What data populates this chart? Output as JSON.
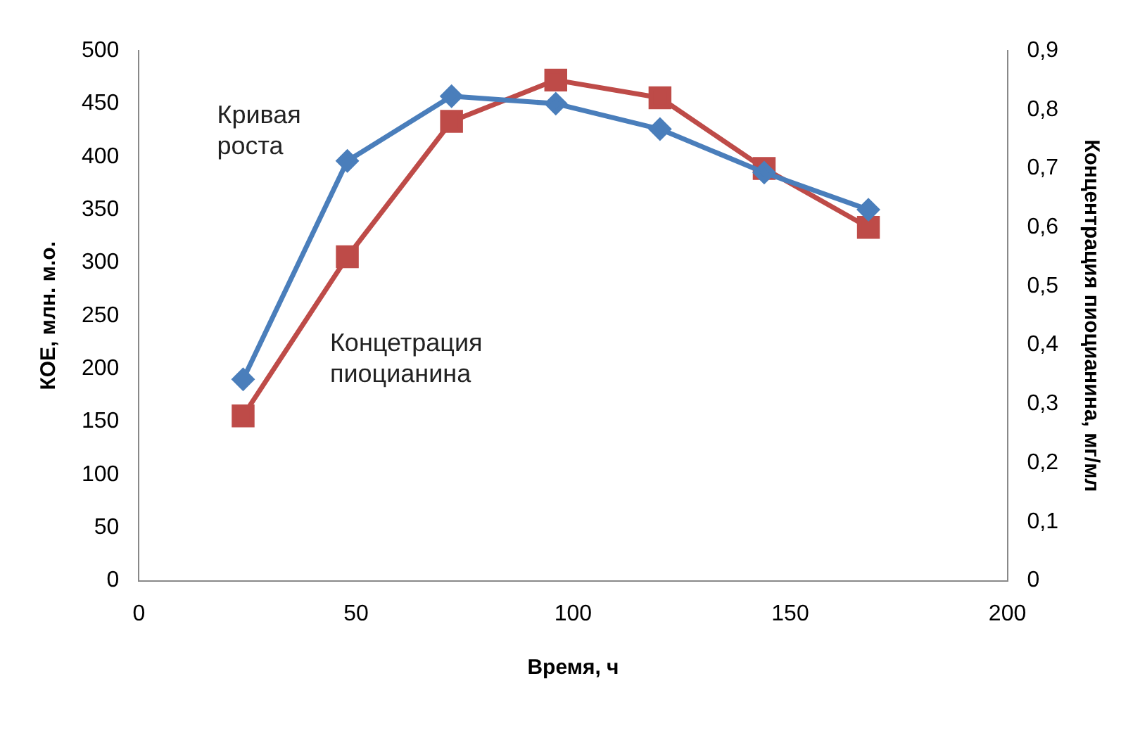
{
  "chart_data": {
    "type": "line",
    "xlabel": "Время, ч",
    "ylabel": "КОЕ, млн. м.о.",
    "y2label": "Концентрация пиоцианина, мг/мл",
    "x": [
      24,
      48,
      72,
      96,
      120,
      144,
      168
    ],
    "series": [
      {
        "name": "Кривая роста",
        "color": "#4a7ebb",
        "marker": "diamond",
        "values": [
          190,
          396,
          457,
          450,
          426,
          385,
          350
        ]
      },
      {
        "name": "Концетрация пиоцианина",
        "color": "#be4b48",
        "marker": "square",
        "axis": "y2",
        "values": [
          0.28,
          0.55,
          0.78,
          0.85,
          0.82,
          0.7,
          0.6
        ]
      }
    ],
    "xlim": [
      0,
      200
    ],
    "xticks": [
      0,
      50,
      100,
      150,
      200
    ],
    "ylim": [
      0,
      500
    ],
    "yticks": [
      0,
      50,
      100,
      150,
      200,
      250,
      300,
      350,
      400,
      450,
      500
    ],
    "y2lim": [
      0,
      0.9
    ],
    "y2ticks": [
      {
        "value": 0,
        "label": "0"
      },
      {
        "value": 0.1,
        "label": "0,1"
      },
      {
        "value": 0.2,
        "label": "0,2"
      },
      {
        "value": 0.3,
        "label": "0,3"
      },
      {
        "value": 0.4,
        "label": "0,4"
      },
      {
        "value": 0.5,
        "label": "0,5"
      },
      {
        "value": 0.6,
        "label": "0,6"
      },
      {
        "value": 0.7,
        "label": "0,7"
      },
      {
        "value": 0.8,
        "label": "0,8"
      },
      {
        "value": 0.9,
        "label": "0,9"
      }
    ],
    "grid": false,
    "legend": false,
    "line_style": "solid"
  }
}
